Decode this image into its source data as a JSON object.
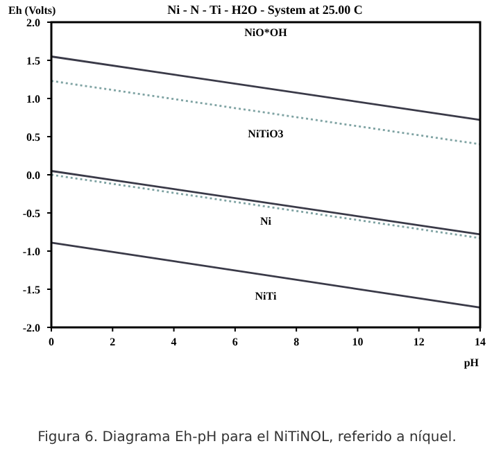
{
  "chart_data": {
    "type": "line",
    "title": "Ni - N - Ti - H2O - System at 25.00 C",
    "xlabel": "pH",
    "ylabel": "Eh (Volts)",
    "x": [
      0,
      14
    ],
    "xlim": [
      0,
      14
    ],
    "xticks": [
      0,
      2,
      4,
      6,
      8,
      10,
      12,
      14
    ],
    "ylim": [
      -2.0,
      2.0
    ],
    "yticks": [
      {
        "value": -2,
        "label": "-2.0"
      },
      {
        "value": -1.5,
        "label": "-1.5"
      },
      {
        "value": -1,
        "label": "-1.0"
      },
      {
        "value": -0.5,
        "label": "-0.5"
      },
      {
        "value": 0,
        "label": "0.0"
      },
      {
        "value": 0.5,
        "label": "0.5"
      },
      {
        "value": 1,
        "label": "1.0"
      },
      {
        "value": 1.5,
        "label": "1.5"
      },
      {
        "value": 2,
        "label": "2.0"
      }
    ],
    "series": [
      {
        "color": "#3a3a48",
        "values": [
          1.55,
          0.72
        ],
        "line_style": "solid"
      },
      {
        "color": "#7fa3a3",
        "values": [
          1.23,
          0.4
        ],
        "line_style": "dotted"
      },
      {
        "color": "#3a3a48",
        "values": [
          0.05,
          -0.78
        ],
        "line_style": "solid"
      },
      {
        "color": "#7fa3a3",
        "values": [
          0.0,
          -0.83
        ],
        "line_style": "dotted"
      },
      {
        "color": "#3a3a48",
        "values": [
          -0.89,
          -1.74
        ],
        "line_style": "solid"
      }
    ],
    "marker": "none",
    "grid": false,
    "annotations": [
      "NiO*OH",
      "NiTiO3",
      "Ni",
      "NiTi",
      "Figura 6. Diagrama Eh-pH para el NiTiNOL, referido a níquel."
    ]
  }
}
